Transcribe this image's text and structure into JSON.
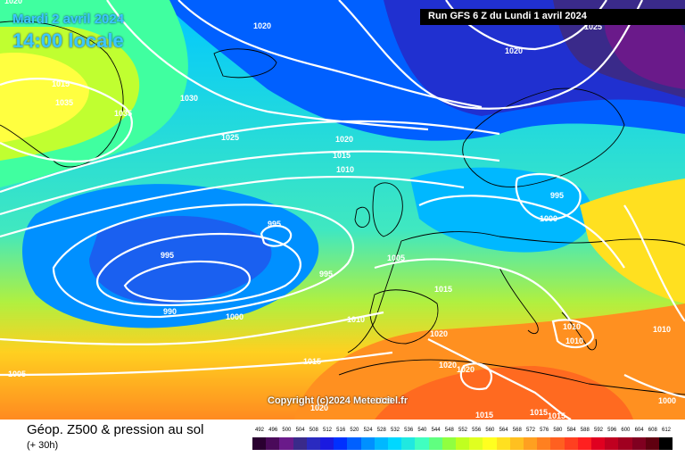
{
  "header": {
    "date": "Mardi 2 avril 2024",
    "time": "14:00 locale",
    "run": "Run GFS 6 Z du Lundi 1 avril 2024"
  },
  "copyright": "Copyright (c)2024 Meteociel.fr",
  "legend": {
    "title": "Géop. Z500 & pression au sol",
    "subtitle": "(+ 30h)",
    "ticks": [
      "492",
      "496",
      "500",
      "504",
      "508",
      "512",
      "516",
      "520",
      "524",
      "528",
      "532",
      "536",
      "540",
      "544",
      "548",
      "552",
      "556",
      "560",
      "564",
      "568",
      "572",
      "576",
      "580",
      "584",
      "588",
      "592",
      "596",
      "600",
      "604",
      "608",
      "612"
    ],
    "colors": [
      "#2a0030",
      "#4a0a5a",
      "#6a1a8a",
      "#3a2a8a",
      "#2a2ac0",
      "#1a1ae0",
      "#0030ff",
      "#0060ff",
      "#0090ff",
      "#00b8ff",
      "#00d8ff",
      "#20e8e0",
      "#40ffc0",
      "#60ff80",
      "#90ff40",
      "#c0ff20",
      "#e0ff20",
      "#ffff20",
      "#ffe020",
      "#ffc020",
      "#ffa020",
      "#ff8020",
      "#ff6020",
      "#ff4020",
      "#ff2020",
      "#e00020",
      "#c00020",
      "#a00020",
      "#800020",
      "#600010",
      "#000000"
    ]
  },
  "isobars": {
    "labels": [
      "1020",
      "1020",
      "1025",
      "1015",
      "1035",
      "1035",
      "1030",
      "1025",
      "1020",
      "1015",
      "1010",
      "995",
      "995",
      "1000",
      "995",
      "990",
      "1000",
      "995",
      "1005",
      "1015",
      "1010",
      "1010",
      "1010",
      "1020",
      "1020",
      "1020",
      "1015",
      "1015",
      "1005",
      "1015",
      "1010",
      "1015",
      "1020",
      "1000",
      "1020",
      "1025"
    ]
  },
  "colors": {
    "isobar": "#ffffff",
    "coast": "#000000"
  }
}
